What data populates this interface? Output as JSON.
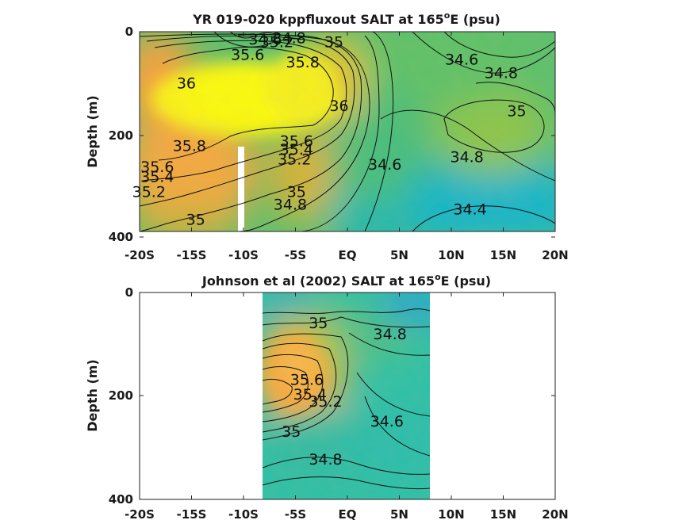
{
  "chart_data": [
    {
      "type": "heatmap",
      "title": "YR 019-020 kppfluxout SALT at 165",
      "title_sup": "o",
      "title_tail": "E (psu)",
      "ylabel": "Depth (m)",
      "x_ticks": [
        "-20S",
        "-15S",
        "-10S",
        "-5S",
        "EQ",
        "5N",
        "10N",
        "15N",
        "20N"
      ],
      "y_ticks": [
        "0",
        "200",
        "400"
      ],
      "xlim": [
        -20,
        20
      ],
      "ylim": [
        0,
        400
      ],
      "y_reversed": true,
      "data_extent_lat": [
        -20,
        20
      ],
      "data_extent_depth": [
        0,
        385
      ],
      "missing_strip_lat": [
        -9.8,
        -9.2
      ],
      "colormap": "parula",
      "contour_labels": [
        {
          "text": "34.6",
          "lat": -7.9,
          "depth": 14
        },
        {
          "text": "34.8",
          "lat": -5.6,
          "depth": 12
        },
        {
          "text": "35.2",
          "lat": -6.8,
          "depth": 20
        },
        {
          "text": "35.6",
          "lat": -9.6,
          "depth": 45
        },
        {
          "text": "35",
          "lat": -1.3,
          "depth": 20
        },
        {
          "text": "35.8",
          "lat": -4.3,
          "depth": 60
        },
        {
          "text": "36",
          "lat": -15.5,
          "depth": 102
        },
        {
          "text": "36",
          "lat": -0.8,
          "depth": 148
        },
        {
          "text": "34.6",
          "lat": 11.0,
          "depth": 55
        },
        {
          "text": "34.8",
          "lat": 14.8,
          "depth": 82
        },
        {
          "text": "35",
          "lat": 16.3,
          "depth": 158
        },
        {
          "text": "35.8",
          "lat": -15.2,
          "depth": 228
        },
        {
          "text": "35.6",
          "lat": -4.9,
          "depth": 218
        },
        {
          "text": "35.4",
          "lat": -4.9,
          "depth": 235
        },
        {
          "text": "35.2",
          "lat": -5.1,
          "depth": 255
        },
        {
          "text": "35.6",
          "lat": -18.3,
          "depth": 270
        },
        {
          "text": "35.4",
          "lat": -18.3,
          "depth": 290
        },
        {
          "text": "35.2",
          "lat": -19.1,
          "depth": 320
        },
        {
          "text": "35",
          "lat": -4.9,
          "depth": 320
        },
        {
          "text": "34.8",
          "lat": -5.5,
          "depth": 345
        },
        {
          "text": "34.6",
          "lat": 3.6,
          "depth": 265
        },
        {
          "text": "34.8",
          "lat": 11.5,
          "depth": 250
        },
        {
          "text": "34.4",
          "lat": 11.8,
          "depth": 355
        },
        {
          "text": "35",
          "lat": -14.6,
          "depth": 375
        }
      ]
    },
    {
      "type": "heatmap",
      "title": "Johnson et al (2002) SALT at 165",
      "title_sup": "o",
      "title_tail": "E (psu)",
      "ylabel": "Depth (m)",
      "x_ticks": [
        "-20S",
        "-15S",
        "-10S",
        "-5S",
        "EQ",
        "5N",
        "10N",
        "15N",
        "20N"
      ],
      "y_ticks": [
        "0",
        "200",
        "400"
      ],
      "xlim": [
        -20,
        20
      ],
      "ylim": [
        0,
        400
      ],
      "y_reversed": true,
      "data_extent_lat": [
        -8,
        8
      ],
      "data_extent_depth": [
        0,
        400
      ],
      "colormap": "parula",
      "contour_labels": [
        {
          "text": "35",
          "lat": -2.8,
          "depth": 58
        },
        {
          "text": "34.8",
          "lat": 4.1,
          "depth": 80
        },
        {
          "text": "35.6",
          "lat": -3.9,
          "depth": 168
        },
        {
          "text": "35.4",
          "lat": -3.6,
          "depth": 196
        },
        {
          "text": "35.2",
          "lat": -2.1,
          "depth": 210
        },
        {
          "text": "34.6",
          "lat": 3.8,
          "depth": 248
        },
        {
          "text": "35",
          "lat": -5.4,
          "depth": 268
        },
        {
          "text": "34.8",
          "lat": -2.1,
          "depth": 322
        }
      ]
    }
  ]
}
